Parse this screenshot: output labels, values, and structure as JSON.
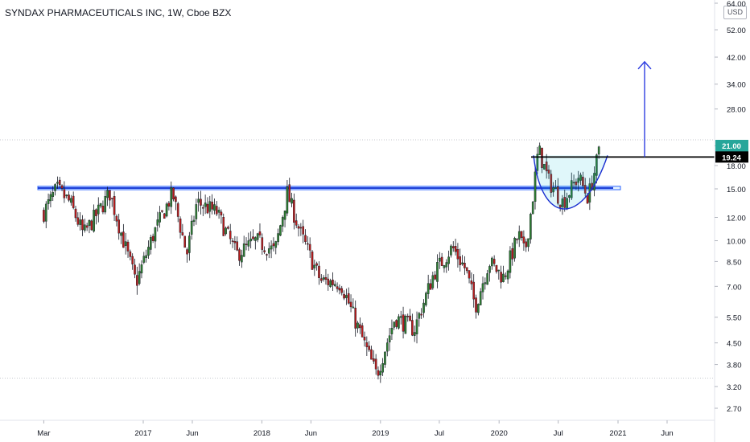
{
  "header": {
    "title": "SYNDAX PHARMACEUTICALS INC, 1W, Cboe BZX",
    "currency": "USD"
  },
  "chart_data": {
    "type": "candlestick",
    "title": "SYNDAX PHARMACEUTICALS INC, 1W, Cboe BZX",
    "y_scale": "log",
    "ylim": [
      2.4,
      66
    ],
    "y_ticks": [
      64.0,
      52.0,
      42.0,
      34.0,
      28.0,
      21.0,
      18.0,
      15.0,
      12.0,
      10.0,
      8.5,
      7.0,
      5.5,
      4.5,
      3.8,
      3.2,
      2.7
    ],
    "y_tick_labels": [
      "64.00",
      "52.00",
      "42.00",
      "34.00",
      "28.00",
      "21.00",
      "18.00",
      "15.00",
      "12.00",
      "10.00",
      "8.50",
      "7.00",
      "5.50",
      "4.50",
      "3.80",
      "3.20",
      "2.70"
    ],
    "x_ticks": [
      {
        "label": "Mar",
        "date": "2016-03-01"
      },
      {
        "label": "2017",
        "date": "2017-01-01"
      },
      {
        "label": "Jun",
        "date": "2017-06-01"
      },
      {
        "label": "2018",
        "date": "2018-01-01"
      },
      {
        "label": "Jun",
        "date": "2018-06-01"
      },
      {
        "label": "2019",
        "date": "2019-01-01"
      },
      {
        "label": "Jul",
        "date": "2019-07-01"
      },
      {
        "label": "2020",
        "date": "2020-01-01"
      },
      {
        "label": "Jul",
        "date": "2020-07-01"
      },
      {
        "label": "2021",
        "date": "2021-01-01"
      },
      {
        "label": "Jun",
        "date": "2021-06-01"
      }
    ],
    "price_path": [
      {
        "date": "2016-03-01",
        "price": 12.5
      },
      {
        "date": "2016-04-10",
        "price": 15.0
      },
      {
        "date": "2016-05-20",
        "price": 13.5
      },
      {
        "date": "2016-07-01",
        "price": 10.5
      },
      {
        "date": "2016-08-15",
        "price": 12.5
      },
      {
        "date": "2016-09-20",
        "price": 14.5
      },
      {
        "date": "2016-11-01",
        "price": 10.0
      },
      {
        "date": "2016-12-10",
        "price": 7.2
      },
      {
        "date": "2017-02-01",
        "price": 10.5
      },
      {
        "date": "2017-04-01",
        "price": 14.5
      },
      {
        "date": "2017-05-15",
        "price": 9.0
      },
      {
        "date": "2017-06-15",
        "price": 13.5
      },
      {
        "date": "2017-08-15",
        "price": 12.5
      },
      {
        "date": "2017-10-15",
        "price": 9.0
      },
      {
        "date": "2017-12-15",
        "price": 10.0
      },
      {
        "date": "2018-02-10",
        "price": 9.2
      },
      {
        "date": "2018-03-20",
        "price": 14.5
      },
      {
        "date": "2018-05-01",
        "price": 10.5
      },
      {
        "date": "2018-07-01",
        "price": 7.3
      },
      {
        "date": "2018-09-01",
        "price": 7.2
      },
      {
        "date": "2018-10-20",
        "price": 5.2
      },
      {
        "date": "2018-12-20",
        "price": 3.5
      },
      {
        "date": "2019-02-15",
        "price": 5.5
      },
      {
        "date": "2019-04-15",
        "price": 5.0
      },
      {
        "date": "2019-06-15",
        "price": 7.8
      },
      {
        "date": "2019-08-10",
        "price": 9.5
      },
      {
        "date": "2019-09-20",
        "price": 8.0
      },
      {
        "date": "2019-10-20",
        "price": 6.0
      },
      {
        "date": "2019-12-01",
        "price": 8.5
      },
      {
        "date": "2020-01-15",
        "price": 7.5
      },
      {
        "date": "2020-03-01",
        "price": 10.5
      },
      {
        "date": "2020-03-20",
        "price": 9.0
      },
      {
        "date": "2020-04-10",
        "price": 13.0
      },
      {
        "date": "2020-05-01",
        "price": 20.5
      },
      {
        "date": "2020-06-01",
        "price": 16.0
      },
      {
        "date": "2020-07-15",
        "price": 13.5
      },
      {
        "date": "2020-09-01",
        "price": 16.5
      },
      {
        "date": "2020-10-01",
        "price": 14.0
      },
      {
        "date": "2020-10-25",
        "price": 18.0
      },
      {
        "date": "2020-11-08",
        "price": 21.0
      }
    ],
    "annotations": {
      "last_price": "21.00",
      "resistance_label": "19.24",
      "resistance_level": 19.24,
      "support_band": [
        14.9,
        15.3
      ],
      "cup_low": 12.8,
      "target_arrow_top": 40.5
    }
  }
}
